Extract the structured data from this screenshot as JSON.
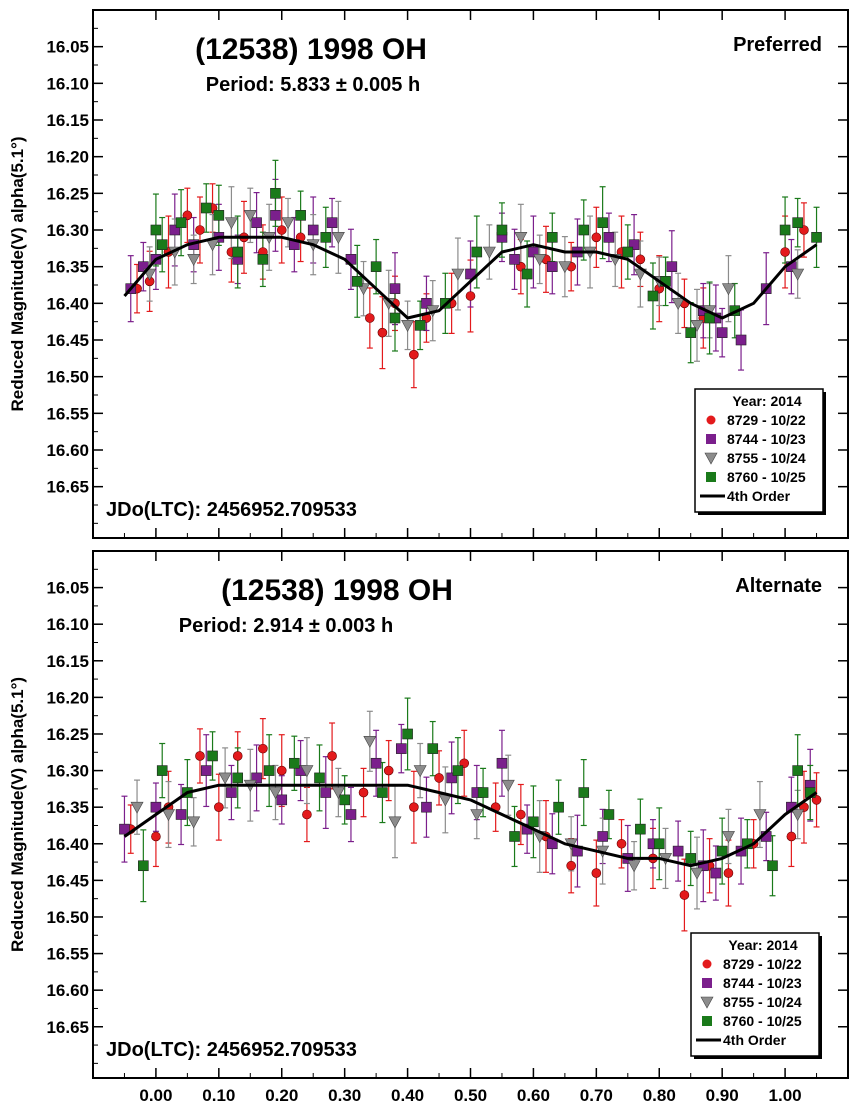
{
  "chart_data": [
    {
      "type": "scatter",
      "object": "(12538) 1998 OH",
      "solution": "Preferred",
      "period_text": "Period: 5.833 ± 0.005 h",
      "epoch_text": "JDo(LTC): 2456952.709533",
      "ylabel": "Reduced Magnitude(V) alpha(5.1°)",
      "xlabel": "",
      "ylim": [
        16.0,
        16.72
      ],
      "y_inverted": true,
      "xlim": [
        -0.1,
        1.1
      ],
      "y_ticks": [
        "16.05",
        "16.10",
        "16.15",
        "16.20",
        "16.25",
        "16.30",
        "16.35",
        "16.40",
        "16.45",
        "16.50",
        "16.55",
        "16.60",
        "16.65"
      ],
      "legend_title": "Year: 2014",
      "legend_position": "bottom-right",
      "series": [
        {
          "name": "8729 - 10/22",
          "marker": "circle",
          "color": "#e31a1c",
          "x": [
            -0.03,
            -0.01,
            0.02,
            0.05,
            0.07,
            0.09,
            0.12,
            0.14,
            0.17,
            0.2,
            0.23,
            0.34,
            0.36,
            0.38,
            0.41,
            0.43,
            0.47,
            0.5,
            0.58,
            0.62,
            0.66,
            0.7,
            0.74,
            0.77,
            0.8,
            0.84,
            0.87,
            1.0,
            1.03
          ],
          "y": [
            16.38,
            16.37,
            16.33,
            16.28,
            16.3,
            16.27,
            16.33,
            16.31,
            16.33,
            16.3,
            16.31,
            16.42,
            16.44,
            16.4,
            16.47,
            16.42,
            16.4,
            16.39,
            16.35,
            16.34,
            16.35,
            16.31,
            16.33,
            16.34,
            16.38,
            16.4,
            16.42,
            16.33,
            16.3
          ]
        },
        {
          "name": "8744 - 10/23",
          "marker": "square",
          "color": "#7b1f8c",
          "x": [
            -0.04,
            -0.02,
            0.0,
            0.03,
            0.06,
            0.1,
            0.13,
            0.16,
            0.19,
            0.22,
            0.25,
            0.28,
            0.31,
            0.38,
            0.43,
            0.5,
            0.55,
            0.57,
            0.6,
            0.63,
            0.67,
            0.72,
            0.76,
            0.82,
            0.87,
            0.89,
            0.9,
            0.93,
            0.97,
            1.01
          ],
          "y": [
            16.38,
            16.35,
            16.34,
            16.3,
            16.32,
            16.31,
            16.34,
            16.29,
            16.28,
            16.32,
            16.3,
            16.29,
            16.34,
            16.38,
            16.4,
            16.36,
            16.31,
            16.34,
            16.33,
            16.35,
            16.33,
            16.31,
            16.32,
            16.35,
            16.41,
            16.42,
            16.44,
            16.45,
            16.38,
            16.35
          ]
        },
        {
          "name": "8755 - 10/24",
          "marker": "triangle-down",
          "color": "#8c8c8c",
          "x": [
            -0.01,
            0.03,
            0.06,
            0.09,
            0.12,
            0.15,
            0.18,
            0.21,
            0.25,
            0.29,
            0.33,
            0.37,
            0.4,
            0.44,
            0.48,
            0.53,
            0.58,
            0.61,
            0.65,
            0.69,
            0.73,
            0.77,
            0.8,
            0.83,
            0.86,
            0.88,
            0.91,
            1.02
          ],
          "y": [
            16.36,
            16.33,
            16.34,
            16.32,
            16.29,
            16.28,
            16.31,
            16.29,
            16.32,
            16.31,
            16.38,
            16.4,
            16.43,
            16.41,
            16.36,
            16.33,
            16.31,
            16.34,
            16.35,
            16.33,
            16.34,
            16.36,
            16.37,
            16.4,
            16.43,
            16.41,
            16.38,
            16.36
          ]
        },
        {
          "name": "8760 - 10/25",
          "marker": "square",
          "color": "#1a7a1a",
          "x": [
            0.0,
            0.01,
            0.04,
            0.08,
            0.1,
            0.13,
            0.17,
            0.19,
            0.23,
            0.27,
            0.32,
            0.35,
            0.38,
            0.42,
            0.46,
            0.51,
            0.55,
            0.59,
            0.63,
            0.68,
            0.71,
            0.75,
            0.79,
            0.81,
            0.85,
            0.88,
            0.92,
            1.0,
            1.02,
            1.05
          ],
          "y": [
            16.3,
            16.32,
            16.29,
            16.27,
            16.28,
            16.33,
            16.34,
            16.25,
            16.28,
            16.31,
            16.37,
            16.35,
            16.42,
            16.43,
            16.4,
            16.33,
            16.3,
            16.36,
            16.31,
            16.3,
            16.29,
            16.33,
            16.39,
            16.37,
            16.44,
            16.42,
            16.41,
            16.3,
            16.29,
            16.31
          ]
        },
        {
          "name": "4th Order",
          "type": "line",
          "color": "#000000",
          "x": [
            -0.05,
            0.0,
            0.05,
            0.1,
            0.15,
            0.2,
            0.25,
            0.3,
            0.35,
            0.4,
            0.45,
            0.5,
            0.55,
            0.6,
            0.65,
            0.7,
            0.75,
            0.8,
            0.85,
            0.9,
            0.95,
            1.0,
            1.05
          ],
          "y": [
            16.39,
            16.34,
            16.32,
            16.31,
            16.31,
            16.31,
            16.32,
            16.34,
            16.38,
            16.42,
            16.41,
            16.37,
            16.33,
            16.32,
            16.33,
            16.33,
            16.34,
            16.37,
            16.4,
            16.42,
            16.4,
            16.35,
            16.32
          ]
        }
      ]
    },
    {
      "type": "scatter",
      "object": "(12538) 1998 OH",
      "solution": "Alternate",
      "period_text": "Period: 2.914 ± 0.003 h",
      "epoch_text": "JDo(LTC): 2456952.709533",
      "ylabel": "Reduced Magnitude(V) alpha(5.1°)",
      "xlabel": "",
      "ylim": [
        16.0,
        16.72
      ],
      "y_inverted": true,
      "xlim": [
        -0.1,
        1.1
      ],
      "y_ticks": [
        "16.05",
        "16.10",
        "16.15",
        "16.20",
        "16.25",
        "16.30",
        "16.35",
        "16.40",
        "16.45",
        "16.50",
        "16.55",
        "16.60",
        "16.65"
      ],
      "x_ticks": [
        "0.00",
        "0.10",
        "0.20",
        "0.30",
        "0.40",
        "0.50",
        "0.60",
        "0.70",
        "0.80",
        "0.90",
        "1.00"
      ],
      "legend_title": "Year: 2014",
      "legend_position": "bottom-right",
      "series": [
        {
          "name": "8729 - 10/22",
          "marker": "circle",
          "color": "#e31a1c",
          "x": [
            -0.04,
            0.0,
            0.02,
            0.07,
            0.1,
            0.13,
            0.17,
            0.2,
            0.24,
            0.28,
            0.33,
            0.37,
            0.41,
            0.45,
            0.49,
            0.54,
            0.58,
            0.62,
            0.66,
            0.7,
            0.74,
            0.79,
            0.84,
            0.88,
            0.91,
            0.95,
            1.01,
            1.03,
            1.05
          ],
          "y": [
            16.38,
            16.39,
            16.35,
            16.28,
            16.35,
            16.28,
            16.27,
            16.3,
            16.36,
            16.28,
            16.33,
            16.3,
            16.35,
            16.31,
            16.29,
            16.35,
            16.36,
            16.39,
            16.43,
            16.44,
            16.4,
            16.42,
            16.47,
            16.43,
            16.44,
            16.4,
            16.39,
            16.35,
            16.34
          ]
        },
        {
          "name": "8744 - 10/23",
          "marker": "square",
          "color": "#7b1f8c",
          "x": [
            -0.05,
            0.0,
            0.04,
            0.08,
            0.12,
            0.16,
            0.2,
            0.23,
            0.27,
            0.31,
            0.35,
            0.39,
            0.43,
            0.47,
            0.51,
            0.55,
            0.59,
            0.63,
            0.67,
            0.71,
            0.75,
            0.79,
            0.83,
            0.87,
            0.89,
            0.93,
            0.97,
            1.01,
            1.04
          ],
          "y": [
            16.38,
            16.35,
            16.36,
            16.3,
            16.33,
            16.31,
            16.34,
            16.3,
            16.33,
            16.36,
            16.29,
            16.27,
            16.35,
            16.31,
            16.33,
            16.29,
            16.38,
            16.4,
            16.41,
            16.39,
            16.42,
            16.4,
            16.41,
            16.43,
            16.44,
            16.41,
            16.39,
            16.35,
            16.32
          ]
        },
        {
          "name": "8755 - 10/24",
          "marker": "triangle-down",
          "color": "#8c8c8c",
          "x": [
            -0.03,
            0.02,
            0.06,
            0.11,
            0.15,
            0.19,
            0.24,
            0.29,
            0.34,
            0.38,
            0.42,
            0.46,
            0.51,
            0.56,
            0.61,
            0.66,
            0.71,
            0.76,
            0.81,
            0.86,
            0.91,
            0.96,
            1.02
          ],
          "y": [
            16.35,
            16.36,
            16.37,
            16.31,
            16.32,
            16.33,
            16.3,
            16.33,
            16.26,
            16.37,
            16.3,
            16.34,
            16.36,
            16.32,
            16.39,
            16.4,
            16.41,
            16.43,
            16.42,
            16.44,
            16.39,
            16.36,
            16.36
          ]
        },
        {
          "name": "8760 - 10/25",
          "marker": "square",
          "color": "#1a7a1a",
          "x": [
            -0.02,
            0.01,
            0.05,
            0.09,
            0.13,
            0.18,
            0.22,
            0.26,
            0.3,
            0.36,
            0.4,
            0.44,
            0.48,
            0.52,
            0.57,
            0.6,
            0.64,
            0.68,
            0.72,
            0.77,
            0.8,
            0.85,
            0.9,
            0.94,
            0.98,
            1.02,
            1.04
          ],
          "y": [
            16.43,
            16.3,
            16.33,
            16.28,
            16.31,
            16.3,
            16.29,
            16.31,
            16.34,
            16.33,
            16.25,
            16.27,
            16.3,
            16.33,
            16.39,
            16.37,
            16.35,
            16.33,
            16.36,
            16.38,
            16.4,
            16.42,
            16.41,
            16.4,
            16.43,
            16.3,
            16.33
          ]
        },
        {
          "name": "4th Order",
          "type": "line",
          "color": "#000000",
          "x": [
            -0.05,
            0.0,
            0.05,
            0.1,
            0.15,
            0.2,
            0.25,
            0.3,
            0.35,
            0.4,
            0.45,
            0.5,
            0.55,
            0.6,
            0.65,
            0.7,
            0.75,
            0.8,
            0.85,
            0.9,
            0.95,
            1.0,
            1.05
          ],
          "y": [
            16.39,
            16.36,
            16.33,
            16.32,
            16.32,
            16.32,
            16.32,
            16.32,
            16.32,
            16.32,
            16.33,
            16.34,
            16.36,
            16.38,
            16.4,
            16.41,
            16.42,
            16.42,
            16.43,
            16.42,
            16.4,
            16.36,
            16.33
          ]
        }
      ]
    }
  ]
}
